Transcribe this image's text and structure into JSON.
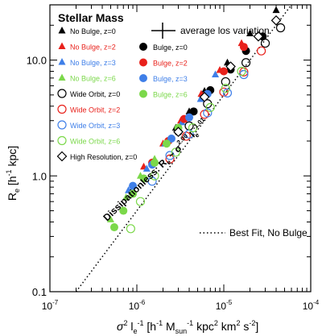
{
  "chart_data": {
    "type": "scatter",
    "title": "Stellar Mass",
    "x_scale": "log",
    "y_scale": "log",
    "xlim": [
      1e-07,
      0.0001
    ],
    "ylim": [
      0.1,
      30
    ],
    "xlabel": {
      "main": "σ",
      "sup1": "2",
      "l": " l",
      "sub1": "e",
      "sup2": "-1",
      "rest": " [h",
      "sup3": "-1",
      "m": " M",
      "sub2": "sun",
      "sup4": "-1",
      "tail": " kpc",
      "sup5": "2",
      "km": " km",
      "sup6": "2",
      "s": " s",
      "sup7": "-2",
      "close": "]"
    },
    "ylabel": {
      "main": "R",
      "sub": "e",
      "rest": " [h",
      "sup": "-1",
      "tail": " kpc]"
    },
    "x_ticks": [
      {
        "value": 1e-07,
        "label_base": "10",
        "label_exp": "-7"
      },
      {
        "value": 1e-06,
        "label_base": "10",
        "label_exp": "-6"
      },
      {
        "value": 1e-05,
        "label_base": "10",
        "label_exp": "-5"
      },
      {
        "value": 0.0001,
        "label_base": "10",
        "label_exp": "-4"
      }
    ],
    "y_ticks": [
      {
        "value": 0.1,
        "label": "0.1"
      },
      {
        "value": 1,
        "label": "1.0"
      },
      {
        "value": 10,
        "label": "10.0"
      }
    ],
    "annotation": {
      "text": "Dissipationless:  R",
      "sub": "e",
      "mid": " ~ σ",
      "sup1": "2.00",
      "l": " l",
      "sub2": "e",
      "sup2": "-1.01",
      "x": 1.3e-06,
      "y": 1.6
    },
    "fit_line": {
      "name": "Best Fit, No Bulge",
      "slope": 1.0,
      "x": [
        2e-07,
        6e-05
      ],
      "y": [
        0.1,
        30
      ]
    },
    "error_bar": {
      "name": "average los variation"
    },
    "colors": {
      "black": "#000000",
      "red": "#e8211b",
      "blue": "#3f7fe8",
      "green": "#7bd84a"
    },
    "legend_left": [
      {
        "label": "No Bulge, z=0",
        "marker": "triangle",
        "color": "black"
      },
      {
        "label": "No Bulge, z=2",
        "marker": "triangle",
        "color": "red"
      },
      {
        "label": "No Bulge, z=3",
        "marker": "triangle",
        "color": "blue"
      },
      {
        "label": "No Bulge, z=6",
        "marker": "triangle",
        "color": "green"
      },
      {
        "label": "Wide Orbit, z=0",
        "marker": "open_circle",
        "color": "black"
      },
      {
        "label": "Wide Orbit, z=2",
        "marker": "open_circle",
        "color": "red"
      },
      {
        "label": "Wide Orbit, z=3",
        "marker": "open_circle",
        "color": "blue"
      },
      {
        "label": "Wide Orbit, z=6",
        "marker": "open_circle",
        "color": "green"
      },
      {
        "label": "High Resolution, z=0",
        "marker": "diamond",
        "color": "black"
      }
    ],
    "legend_right": [
      {
        "label": "Bulge, z=0",
        "marker": "circle",
        "color": "black"
      },
      {
        "label": "Bulge, z=2",
        "marker": "circle",
        "color": "red"
      },
      {
        "label": "Bulge, z=3",
        "marker": "circle",
        "color": "blue"
      },
      {
        "label": "Bulge, z=6",
        "marker": "circle",
        "color": "green"
      }
    ],
    "series": [
      {
        "marker": "triangle",
        "color": "black",
        "points": [
          [
            2.8e-06,
            2.6
          ],
          [
            4e-06,
            3.6
          ],
          [
            6e-06,
            5.4
          ],
          [
            1.1e-05,
            9.5
          ],
          [
            2e-05,
            17
          ],
          [
            4e-05,
            27
          ]
        ]
      },
      {
        "marker": "triangle",
        "color": "red",
        "points": [
          [
            1.2e-06,
            1.2
          ],
          [
            2e-06,
            1.9
          ],
          [
            3.2e-06,
            3.0
          ],
          [
            5.5e-06,
            5.1
          ],
          [
            9e-06,
            8.2
          ],
          [
            1.6e-05,
            14
          ]
        ]
      },
      {
        "marker": "triangle",
        "color": "blue",
        "points": [
          [
            8e-07,
            0.75
          ],
          [
            1.3e-06,
            1.15
          ],
          [
            2.1e-06,
            1.9
          ],
          [
            3.3e-06,
            2.9
          ],
          [
            5.4e-06,
            4.6
          ],
          [
            8e-06,
            7.5
          ]
        ]
      },
      {
        "marker": "triangle",
        "color": "green",
        "points": [
          [
            5e-07,
            0.42
          ],
          [
            7.5e-07,
            0.65
          ],
          [
            1.1e-06,
            1.0
          ],
          [
            1.6e-06,
            1.4
          ],
          [
            2.4e-06,
            2.1
          ]
        ]
      },
      {
        "marker": "circle",
        "color": "black",
        "points": [
          [
            3e-06,
            2.4
          ],
          [
            4.5e-06,
            3.6
          ],
          [
            7e-06,
            5.5
          ],
          [
            1.2e-05,
            8.3
          ],
          [
            1.8e-05,
            12
          ],
          [
            2.8e-05,
            16
          ]
        ]
      },
      {
        "marker": "circle",
        "color": "red",
        "points": [
          [
            1.5e-06,
            1.3
          ],
          [
            2.3e-06,
            2.0
          ],
          [
            3.5e-06,
            3.1
          ],
          [
            6e-06,
            4.9
          ],
          [
            1e-05,
            8
          ],
          [
            1.7e-05,
            13
          ]
        ]
      },
      {
        "marker": "circle",
        "color": "blue",
        "points": [
          [
            9e-07,
            0.82
          ],
          [
            1.5e-06,
            1.25
          ],
          [
            2.5e-06,
            2.1
          ],
          [
            4e-06,
            3.2
          ],
          [
            6.5e-06,
            5.1
          ]
        ]
      },
      {
        "marker": "circle",
        "color": "green",
        "points": [
          [
            5.5e-07,
            0.36
          ],
          [
            7e-07,
            0.5
          ],
          [
            9e-07,
            0.7
          ],
          [
            1.2e-06,
            0.95
          ],
          [
            1.6e-06,
            1.3
          ],
          [
            2.2e-06,
            1.9
          ],
          [
            3e-06,
            2.6
          ]
        ]
      },
      {
        "marker": "open_circle",
        "color": "black",
        "points": [
          [
            4e-06,
            2.7
          ],
          [
            6.5e-06,
            4.2
          ],
          [
            1.05e-05,
            6.5
          ],
          [
            1.8e-05,
            9.5
          ],
          [
            3e-05,
            14
          ],
          [
            4.5e-05,
            19
          ]
        ]
      },
      {
        "marker": "open_circle",
        "color": "red",
        "points": [
          [
            2.4e-06,
            1.4
          ],
          [
            3.7e-06,
            2.2
          ],
          [
            6e-06,
            3.4
          ],
          [
            1e-05,
            5.3
          ],
          [
            1.7e-05,
            7.9
          ],
          [
            2.7e-05,
            12
          ]
        ]
      },
      {
        "marker": "open_circle",
        "color": "blue",
        "points": [
          [
            1.5e-06,
            0.9
          ],
          [
            2.4e-06,
            1.5
          ],
          [
            4e-06,
            2.3
          ],
          [
            6.5e-06,
            3.5
          ],
          [
            1.1e-05,
            5.2
          ],
          [
            1.7e-05,
            7.5
          ]
        ]
      },
      {
        "marker": "open_circle",
        "color": "green",
        "points": [
          [
            8.5e-07,
            0.35
          ],
          [
            1.1e-06,
            0.6
          ],
          [
            1.6e-06,
            1.0
          ],
          [
            2.8e-06,
            1.6
          ],
          [
            4.4e-06,
            2.6
          ],
          [
            7e-06,
            3.9
          ],
          [
            1.05e-05,
            5.7
          ],
          [
            1.6e-05,
            8
          ]
        ]
      },
      {
        "marker": "diamond",
        "color": "black",
        "points": [
          [
            3e-06,
            2.4
          ],
          [
            6e-06,
            4.8
          ],
          [
            1.2e-05,
            8.8
          ],
          [
            2.5e-05,
            16
          ],
          [
            4e-05,
            22
          ]
        ]
      }
    ]
  }
}
